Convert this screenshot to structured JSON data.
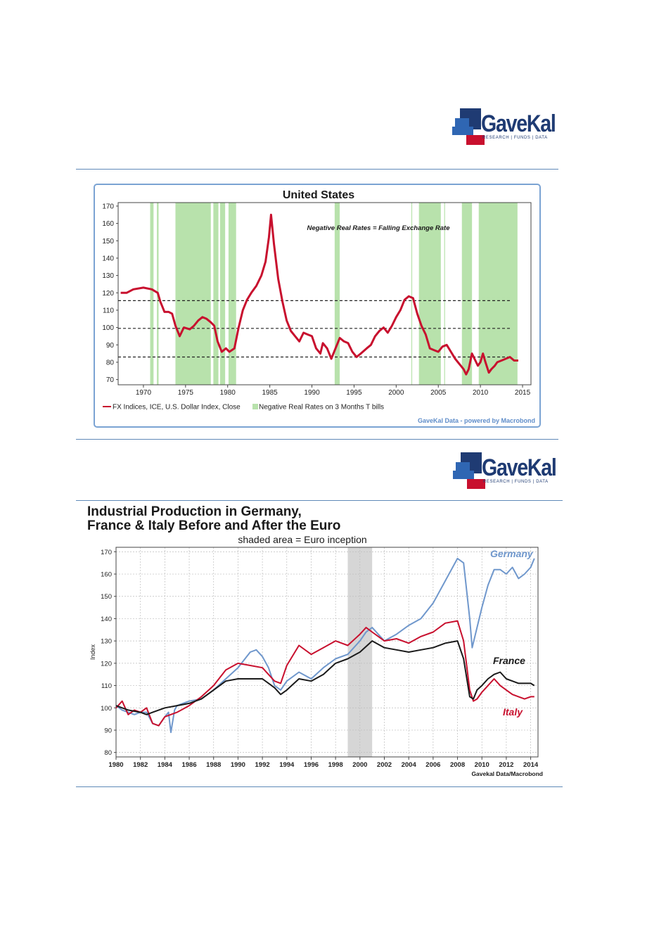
{
  "logo": {
    "name": "GaveKal",
    "tagline": "RESEARCH | FUNDS | DATA"
  },
  "chart_data": [
    {
      "type": "line",
      "title": "United States",
      "annotation": "Negative Real Rates = Falling Exchange Rate",
      "source": "GaveKal Data - powered by Macrobond",
      "xlim": [
        1967,
        2016
      ],
      "ylim": [
        67,
        172
      ],
      "x_ticks": [
        1970,
        1975,
        1980,
        1985,
        1990,
        1995,
        2000,
        2005,
        2010,
        2015
      ],
      "y_ticks": [
        70,
        80,
        90,
        100,
        110,
        120,
        130,
        140,
        150,
        160,
        170
      ],
      "grid": false,
      "legend_position": "bottom-left",
      "legend": [
        {
          "label": "FX Indices, ICE, U.S. Dollar Index, Close",
          "color": "#c8102e",
          "kind": "line"
        },
        {
          "label": "Negative Real Rates on 3 Months T bills",
          "color": "#b8e2ac",
          "kind": "area"
        }
      ],
      "shaded_periods": [
        [
          1970.8,
          1971.2
        ],
        [
          1971.6,
          1971.8
        ],
        [
          1973.8,
          1978.0
        ],
        [
          1978.3,
          1978.9
        ],
        [
          1979.1,
          1979.7
        ],
        [
          1980.1,
          1981.0
        ],
        [
          1992.7,
          1993.3
        ],
        [
          2001.8,
          2001.9
        ],
        [
          2002.7,
          2005.3
        ],
        [
          2005.7,
          2005.8
        ],
        [
          2007.8,
          2009.0
        ],
        [
          2009.8,
          2014.4
        ]
      ],
      "reference_lines": [
        115.5,
        99.5,
        83
      ],
      "series": [
        {
          "name": "FX Indices, ICE, U.S. Dollar Index, Close",
          "color": "#c8102e",
          "x": [
            1967.3,
            1968,
            1968.8,
            1970,
            1971,
            1971.7,
            1972,
            1972.5,
            1973,
            1973.4,
            1973.8,
            1974.3,
            1974.8,
            1975.5,
            1976,
            1976.5,
            1977,
            1977.5,
            1978,
            1978.4,
            1978.8,
            1979.3,
            1979.8,
            1980.2,
            1980.8,
            1981.3,
            1981.8,
            1982.3,
            1982.8,
            1983.4,
            1984,
            1984.5,
            1984.9,
            1985.15,
            1985.5,
            1986,
            1986.5,
            1987,
            1987.5,
            1988,
            1988.5,
            1989,
            1989.5,
            1990,
            1990.5,
            1991,
            1991.3,
            1991.8,
            1992.3,
            1992.8,
            1993.3,
            1993.8,
            1994.3,
            1994.8,
            1995.3,
            1995.8,
            1996.5,
            1997,
            1997.5,
            1998,
            1998.5,
            1999,
            1999.5,
            2000,
            2000.5,
            2001,
            2001.5,
            2002,
            2002.5,
            2003,
            2003.5,
            2004,
            2004.5,
            2005,
            2005.5,
            2006,
            2006.5,
            2007,
            2007.5,
            2008,
            2008.3,
            2008.6,
            2009,
            2009.3,
            2009.7,
            2010,
            2010.3,
            2010.6,
            2011,
            2011.3,
            2011.7,
            2012,
            2012.5,
            2013,
            2013.5,
            2014,
            2014.5
          ],
          "values": [
            120,
            120,
            122,
            123,
            122,
            120,
            115,
            109,
            109,
            108,
            101,
            95,
            100,
            99,
            101,
            104,
            106,
            105,
            103,
            101,
            92,
            86,
            88,
            86,
            88,
            100,
            110,
            116,
            120,
            124,
            130,
            138,
            152,
            165,
            148,
            128,
            115,
            104,
            98,
            95,
            92,
            97,
            96,
            95,
            88,
            85,
            91,
            88,
            82,
            88,
            94,
            92,
            91,
            86,
            83,
            85,
            88,
            90,
            95,
            98,
            100,
            97,
            101,
            106,
            110,
            116,
            118,
            117,
            108,
            101,
            96,
            88,
            87,
            86,
            89,
            90,
            86,
            82,
            79,
            76,
            73,
            76,
            85,
            82,
            78,
            80,
            85,
            80,
            74,
            76,
            78,
            80,
            81,
            82,
            83,
            81,
            81
          ]
        }
      ]
    },
    {
      "type": "line",
      "title": "Industrial Production in Germany, France & Italy Before and After the Euro",
      "title_lines": [
        "Industrial Production in Germany,",
        "France & Italy Before and After the Euro"
      ],
      "subtitle": "shaded area = Euro inception",
      "ylabel": "Index",
      "source": "Gavekal Data/Macrobond",
      "xlim": [
        1980,
        2014.6
      ],
      "ylim": [
        78,
        172
      ],
      "x_ticks": [
        1980,
        1982,
        1984,
        1986,
        1988,
        1990,
        1992,
        1994,
        1996,
        1998,
        2000,
        2002,
        2004,
        2006,
        2008,
        2010,
        2012,
        2014
      ],
      "y_ticks": [
        80,
        90,
        100,
        110,
        120,
        130,
        140,
        150,
        160,
        170
      ],
      "grid": true,
      "shaded_periods": [
        [
          1999,
          2001
        ]
      ],
      "series": [
        {
          "name": "Germany",
          "color": "#6f97cc",
          "x": [
            1980,
            1980.5,
            1981,
            1981.5,
            1982,
            1982.5,
            1983,
            1983.5,
            1984,
            1984.3,
            1984.5,
            1984.8,
            1985,
            1986,
            1987,
            1988,
            1989,
            1990,
            1991,
            1991.5,
            1992,
            1992.5,
            1993,
            1993.5,
            1994,
            1995,
            1996,
            1997,
            1998,
            1999,
            2000,
            2000.5,
            2001,
            2002,
            2003,
            2004,
            2005,
            2006,
            2007,
            2008,
            2008.5,
            2009,
            2009.2,
            2009.6,
            2010,
            2010.5,
            2011,
            2011.5,
            2012,
            2012.5,
            2013,
            2013.5,
            2014,
            2014.3
          ],
          "values": [
            101,
            99,
            98,
            97,
            98,
            98,
            93,
            92,
            96,
            98,
            89,
            99,
            101,
            103,
            104,
            108,
            113,
            118,
            125,
            126,
            123,
            118,
            110,
            108,
            112,
            116,
            113,
            118,
            122,
            124,
            130,
            134,
            136,
            130,
            133,
            137,
            140,
            147,
            157,
            167,
            165,
            140,
            127,
            136,
            145,
            155,
            162,
            162,
            160,
            163,
            158,
            160,
            163,
            167
          ]
        },
        {
          "name": "France",
          "color": "#1a1a1a",
          "x": [
            1980,
            1981,
            1982,
            1982.5,
            1983,
            1984,
            1985,
            1986,
            1987,
            1988,
            1989,
            1990,
            1991,
            1992,
            1993,
            1993.5,
            1994,
            1995,
            1996,
            1997,
            1998,
            1999,
            2000,
            2001,
            2002,
            2003,
            2004,
            2005,
            2006,
            2007,
            2008,
            2008.5,
            2009,
            2009.3,
            2009.6,
            2010,
            2010.5,
            2011,
            2011.5,
            2012,
            2012.5,
            2013,
            2013.5,
            2014,
            2014.3
          ],
          "values": [
            101,
            99,
            98,
            97,
            98,
            100,
            101,
            102,
            104,
            108,
            112,
            113,
            113,
            113,
            109,
            106,
            108,
            113,
            112,
            115,
            120,
            122,
            125,
            130,
            127,
            126,
            125,
            126,
            127,
            129,
            130,
            122,
            105,
            104,
            108,
            110,
            113,
            115,
            116,
            113,
            112,
            111,
            111,
            111,
            110
          ]
        },
        {
          "name": "Italy",
          "color": "#c8102e",
          "x": [
            1980,
            1980.5,
            1981,
            1981.5,
            1982,
            1982.5,
            1983,
            1983.5,
            1984,
            1985,
            1986,
            1987,
            1988,
            1989,
            1990,
            1991,
            1992,
            1993,
            1993.5,
            1994,
            1995,
            1996,
            1997,
            1998,
            1999,
            2000,
            2000.5,
            2001,
            2002,
            2003,
            2004,
            2005,
            2006,
            2007,
            2008,
            2008.5,
            2009,
            2009.3,
            2009.6,
            2010,
            2010.5,
            2011,
            2011.5,
            2012,
            2012.5,
            2013,
            2013.5,
            2014,
            2014.3
          ],
          "values": [
            100,
            103,
            97,
            99,
            98,
            100,
            93,
            92,
            96,
            98,
            101,
            105,
            110,
            117,
            120,
            119,
            118,
            112,
            111,
            119,
            128,
            124,
            127,
            130,
            128,
            133,
            136,
            134,
            130,
            131,
            129,
            132,
            134,
            138,
            139,
            130,
            108,
            103,
            104,
            107,
            110,
            113,
            110,
            108,
            106,
            105,
            104,
            105,
            105
          ]
        }
      ],
      "series_labels": [
        {
          "text": "Germany",
          "color": "#6f97cc"
        },
        {
          "text": "France",
          "color": "#1a1a1a"
        },
        {
          "text": "Italy",
          "color": "#c8102e"
        }
      ]
    }
  ]
}
